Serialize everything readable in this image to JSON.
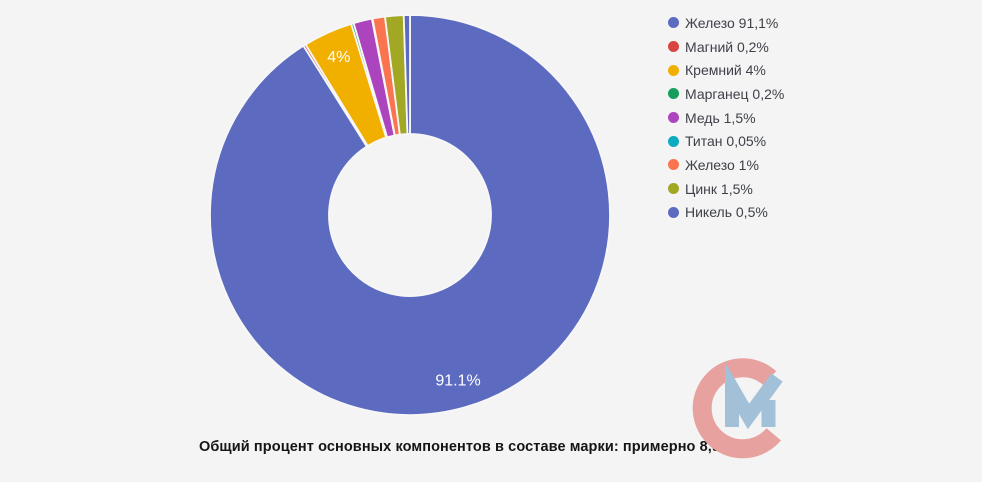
{
  "background_color": "#f4f4f5",
  "caption": "Общий процент основных компонентов в составе марки: примерно 8,9%",
  "text_colors": {
    "legend": "#3e4147",
    "caption": "#151515"
  },
  "chart_data": {
    "type": "pie",
    "subtype": "donut",
    "start_angle_deg": 0,
    "direction": "clockwise",
    "legend_position": "right",
    "grid": false,
    "slice_label_color": "#ffffff",
    "separator_color": "#f7f7f8",
    "total_percent": 100.05,
    "slices": [
      {
        "name": "Железо",
        "value": 91.1,
        "legend_label": "Железо 91,1%",
        "color": "#5c6bc0",
        "slice_label": "91.1%"
      },
      {
        "name": "Магний",
        "value": 0.2,
        "legend_label": "Магний 0,2%",
        "color": "#d7453e",
        "slice_label": ""
      },
      {
        "name": "Кремний",
        "value": 4,
        "legend_label": "Кремний 4%",
        "color": "#f1af00",
        "slice_label": "4%"
      },
      {
        "name": "Марганец",
        "value": 0.2,
        "legend_label": "Марганец 0,2%",
        "color": "#189e5b",
        "slice_label": ""
      },
      {
        "name": "Медь",
        "value": 1.5,
        "legend_label": "Медь 1,5%",
        "color": "#ac44be",
        "slice_label": ""
      },
      {
        "name": "Титан",
        "value": 0.05,
        "legend_label": "Титан 0,05%",
        "color": "#0dabc0",
        "slice_label": ""
      },
      {
        "name": "Железо",
        "value": 1,
        "legend_label": "Железо 1%",
        "color": "#fb7450",
        "slice_label": ""
      },
      {
        "name": "Цинк",
        "value": 1.5,
        "legend_label": "Цинк 1,5%",
        "color": "#a2a823",
        "slice_label": ""
      },
      {
        "name": "Никель",
        "value": 0.5,
        "legend_label": "Никель 0,5%",
        "color": "#5c6bc0",
        "slice_label": ""
      }
    ]
  },
  "logo": {
    "letters": "СМ",
    "c_color": "#e7a19f",
    "m_color": "#a2c0d7"
  }
}
